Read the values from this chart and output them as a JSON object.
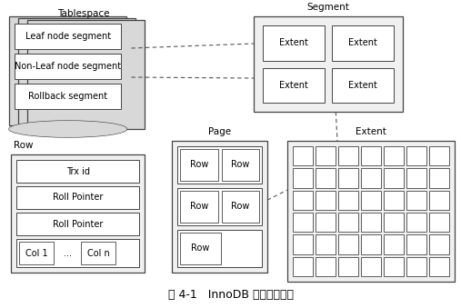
{
  "title": "图 4-1   InnoDB 逻辑存储结构",
  "bg_color": "#ffffff",
  "tablespace_label": "Tablespace",
  "segment_label": "Segment",
  "extent_label": "Extent",
  "page_label": "Page",
  "row_label": "Row",
  "segments": [
    "Leaf node segment",
    "Non-Leaf node segment",
    "Rollback segment"
  ],
  "extents_in_segment": [
    "Extent",
    "Extent",
    "Extent",
    "Extent"
  ],
  "row_fields": [
    "Trx id",
    "Roll Pointer",
    "Roll Pointer"
  ],
  "row_bottom": [
    "Col 1",
    "...",
    "Col n"
  ],
  "page_rows_top": [
    [
      "Row",
      "Row"
    ],
    [
      "Row",
      "Row"
    ],
    [
      "Row"
    ]
  ],
  "extent_grid_rows": 6,
  "extent_grid_cols": 7,
  "gray_stack": "#c8c8c8",
  "gray_face": "#d8d8d8",
  "white": "#ffffff",
  "edge_color": "#444444",
  "font_size_label": 7.5,
  "font_size_cell": 7.0,
  "font_size_caption": 9.0
}
